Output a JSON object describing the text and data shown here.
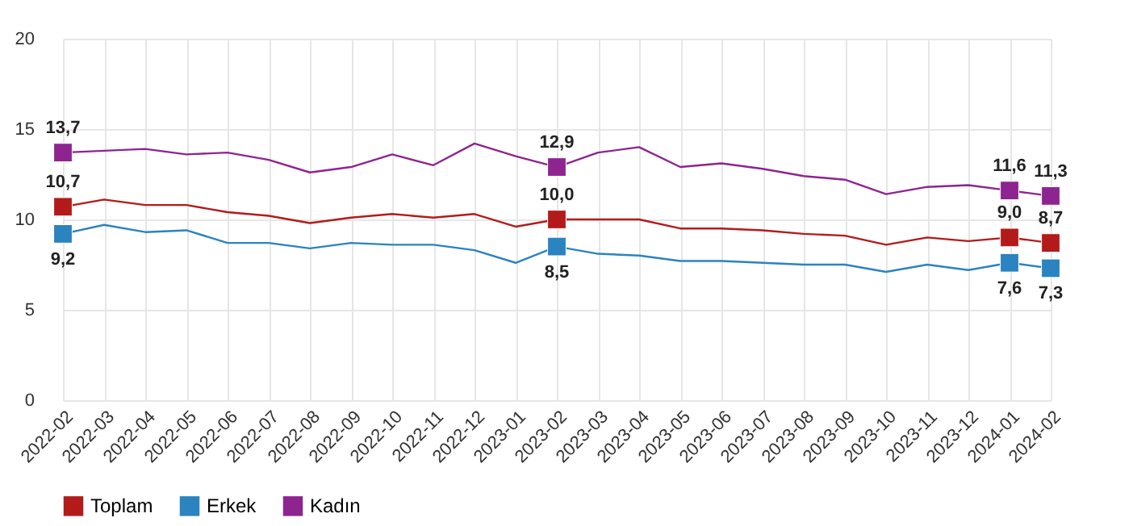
{
  "chart_data": {
    "type": "line",
    "categories": [
      "2022-02",
      "2022-03",
      "2022-04",
      "2022-05",
      "2022-06",
      "2022-07",
      "2022-08",
      "2022-09",
      "2022-10",
      "2022-11",
      "2022-12",
      "2023-01",
      "2023-02",
      "2023-03",
      "2023-04",
      "2023-05",
      "2023-06",
      "2023-07",
      "2023-08",
      "2023-09",
      "2023-10",
      "2023-11",
      "2023-12",
      "2024-01",
      "2024-02"
    ],
    "series": [
      {
        "name": "Toplam",
        "color": "#b31b1b",
        "values": [
          10.7,
          11.1,
          10.8,
          10.8,
          10.4,
          10.2,
          9.8,
          10.1,
          10.3,
          10.1,
          10.3,
          9.6,
          10.0,
          10.0,
          10.0,
          9.5,
          9.5,
          9.4,
          9.2,
          9.1,
          8.6,
          9.0,
          8.8,
          9.0,
          8.7
        ],
        "value_labels": [
          "10,7",
          null,
          null,
          null,
          null,
          null,
          null,
          null,
          null,
          null,
          null,
          null,
          "10,0",
          null,
          null,
          null,
          null,
          null,
          null,
          null,
          null,
          null,
          null,
          "9,0",
          "8,7"
        ]
      },
      {
        "name": "Erkek",
        "color": "#2b83c0",
        "values": [
          9.2,
          9.7,
          9.3,
          9.4,
          8.7,
          8.7,
          8.4,
          8.7,
          8.6,
          8.6,
          8.3,
          7.6,
          8.5,
          8.1,
          8.0,
          7.7,
          7.7,
          7.6,
          7.5,
          7.5,
          7.1,
          7.5,
          7.2,
          7.6,
          7.3
        ],
        "value_labels": [
          "9,2",
          null,
          null,
          null,
          null,
          null,
          null,
          null,
          null,
          null,
          null,
          null,
          "8,5",
          null,
          null,
          null,
          null,
          null,
          null,
          null,
          null,
          null,
          null,
          "7,6",
          "7,3"
        ]
      },
      {
        "name": "Kadın",
        "color": "#8e2490",
        "values": [
          13.7,
          13.8,
          13.9,
          13.6,
          13.7,
          13.3,
          12.6,
          12.9,
          13.6,
          13.0,
          14.2,
          13.5,
          12.9,
          13.7,
          14.0,
          12.9,
          13.1,
          12.8,
          12.4,
          12.2,
          11.4,
          11.8,
          11.9,
          11.6,
          11.3
        ],
        "value_labels": [
          "13,7",
          null,
          null,
          null,
          null,
          null,
          null,
          null,
          null,
          null,
          null,
          null,
          "12,9",
          null,
          null,
          null,
          null,
          null,
          null,
          null,
          null,
          null,
          null,
          "11,6",
          "11,3"
        ]
      }
    ],
    "ylim": [
      0,
      20
    ],
    "yticks": [
      0,
      5,
      10,
      15,
      20
    ],
    "grid": true,
    "legend": "bottom"
  }
}
